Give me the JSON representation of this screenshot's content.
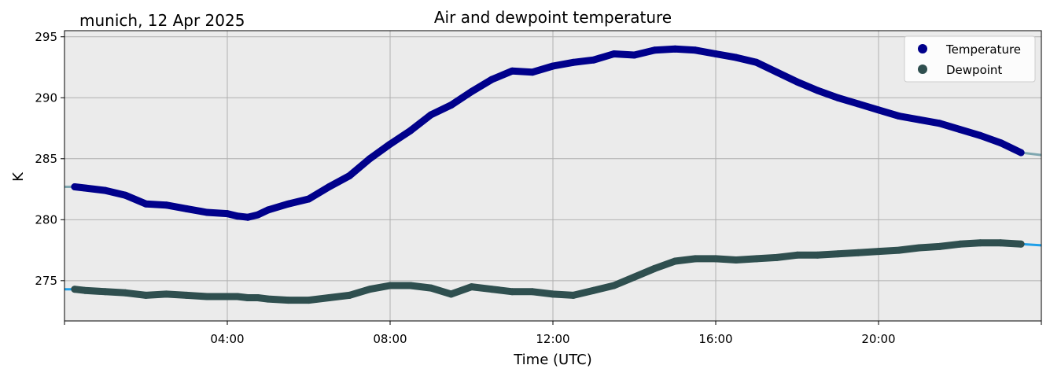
{
  "chart_data": {
    "type": "line",
    "title": "Air and dewpoint temperature",
    "subtitle": "munich, 12 Apr 2025",
    "xlabel": "Time (UTC)",
    "ylabel": "K",
    "xlim": [
      0,
      24
    ],
    "ylim": [
      271.7,
      295.5
    ],
    "x_ticks": [
      {
        "value": 4,
        "label": "04:00"
      },
      {
        "value": 8,
        "label": "08:00"
      },
      {
        "value": 12,
        "label": "12:00"
      },
      {
        "value": 16,
        "label": "16:00"
      },
      {
        "value": 20,
        "label": "20:00"
      }
    ],
    "y_ticks": [
      {
        "value": 275,
        "label": "275"
      },
      {
        "value": 280,
        "label": "280"
      },
      {
        "value": 285,
        "label": "285"
      },
      {
        "value": 290,
        "label": "290"
      },
      {
        "value": 295,
        "label": "295"
      }
    ],
    "grid": true,
    "legend_position": "top-right",
    "series": [
      {
        "name": "Temperature",
        "color": "#00008b",
        "raw_color": "#7fa7b0",
        "x": [
          0.25,
          0.5,
          1.0,
          1.5,
          2.0,
          2.5,
          3.0,
          3.5,
          4.0,
          4.25,
          4.5,
          4.75,
          5.0,
          5.5,
          6.0,
          6.5,
          7.0,
          7.5,
          8.0,
          8.5,
          9.0,
          9.5,
          10.0,
          10.5,
          11.0,
          11.5,
          12.0,
          12.5,
          13.0,
          13.5,
          14.0,
          14.5,
          15.0,
          15.5,
          16.0,
          16.5,
          17.0,
          17.5,
          18.0,
          18.5,
          19.0,
          19.5,
          20.0,
          20.5,
          21.0,
          21.5,
          22.0,
          22.5,
          23.0,
          23.5
        ],
        "values": [
          282.7,
          282.6,
          282.4,
          282.0,
          281.3,
          281.2,
          280.9,
          280.6,
          280.5,
          280.3,
          280.2,
          280.4,
          280.8,
          281.3,
          281.7,
          282.7,
          283.6,
          285.0,
          286.2,
          287.3,
          288.6,
          289.4,
          290.5,
          291.5,
          292.2,
          292.1,
          292.6,
          292.9,
          293.1,
          293.6,
          293.5,
          293.9,
          294.0,
          293.9,
          293.6,
          293.3,
          292.9,
          292.1,
          291.3,
          290.6,
          290.0,
          289.5,
          289.0,
          288.5,
          288.2,
          287.9,
          287.4,
          286.9,
          286.3,
          285.5
        ]
      },
      {
        "name": "Dewpoint",
        "color": "#2f4f4f",
        "raw_color": "#1f9fe8",
        "x": [
          0.25,
          0.5,
          1.0,
          1.5,
          2.0,
          2.5,
          3.0,
          3.5,
          4.0,
          4.25,
          4.5,
          4.75,
          5.0,
          5.5,
          6.0,
          6.5,
          7.0,
          7.5,
          8.0,
          8.5,
          9.0,
          9.5,
          10.0,
          10.5,
          11.0,
          11.5,
          12.0,
          12.5,
          13.0,
          13.5,
          14.0,
          14.5,
          15.0,
          15.5,
          16.0,
          16.5,
          17.0,
          17.5,
          18.0,
          18.5,
          19.0,
          19.5,
          20.0,
          20.5,
          21.0,
          21.5,
          22.0,
          22.5,
          23.0,
          23.5
        ],
        "values": [
          274.3,
          274.2,
          274.1,
          274.0,
          273.8,
          273.9,
          273.8,
          273.7,
          273.7,
          273.7,
          273.6,
          273.6,
          273.5,
          273.4,
          273.4,
          273.6,
          273.8,
          274.3,
          274.6,
          274.6,
          274.4,
          273.9,
          274.5,
          274.3,
          274.1,
          274.1,
          273.9,
          273.8,
          274.2,
          274.6,
          275.3,
          276.0,
          276.6,
          276.8,
          276.8,
          276.7,
          276.8,
          276.9,
          277.1,
          277.1,
          277.2,
          277.3,
          277.4,
          277.5,
          277.7,
          277.8,
          278.0,
          278.1,
          278.1,
          278.0
        ]
      }
    ]
  }
}
